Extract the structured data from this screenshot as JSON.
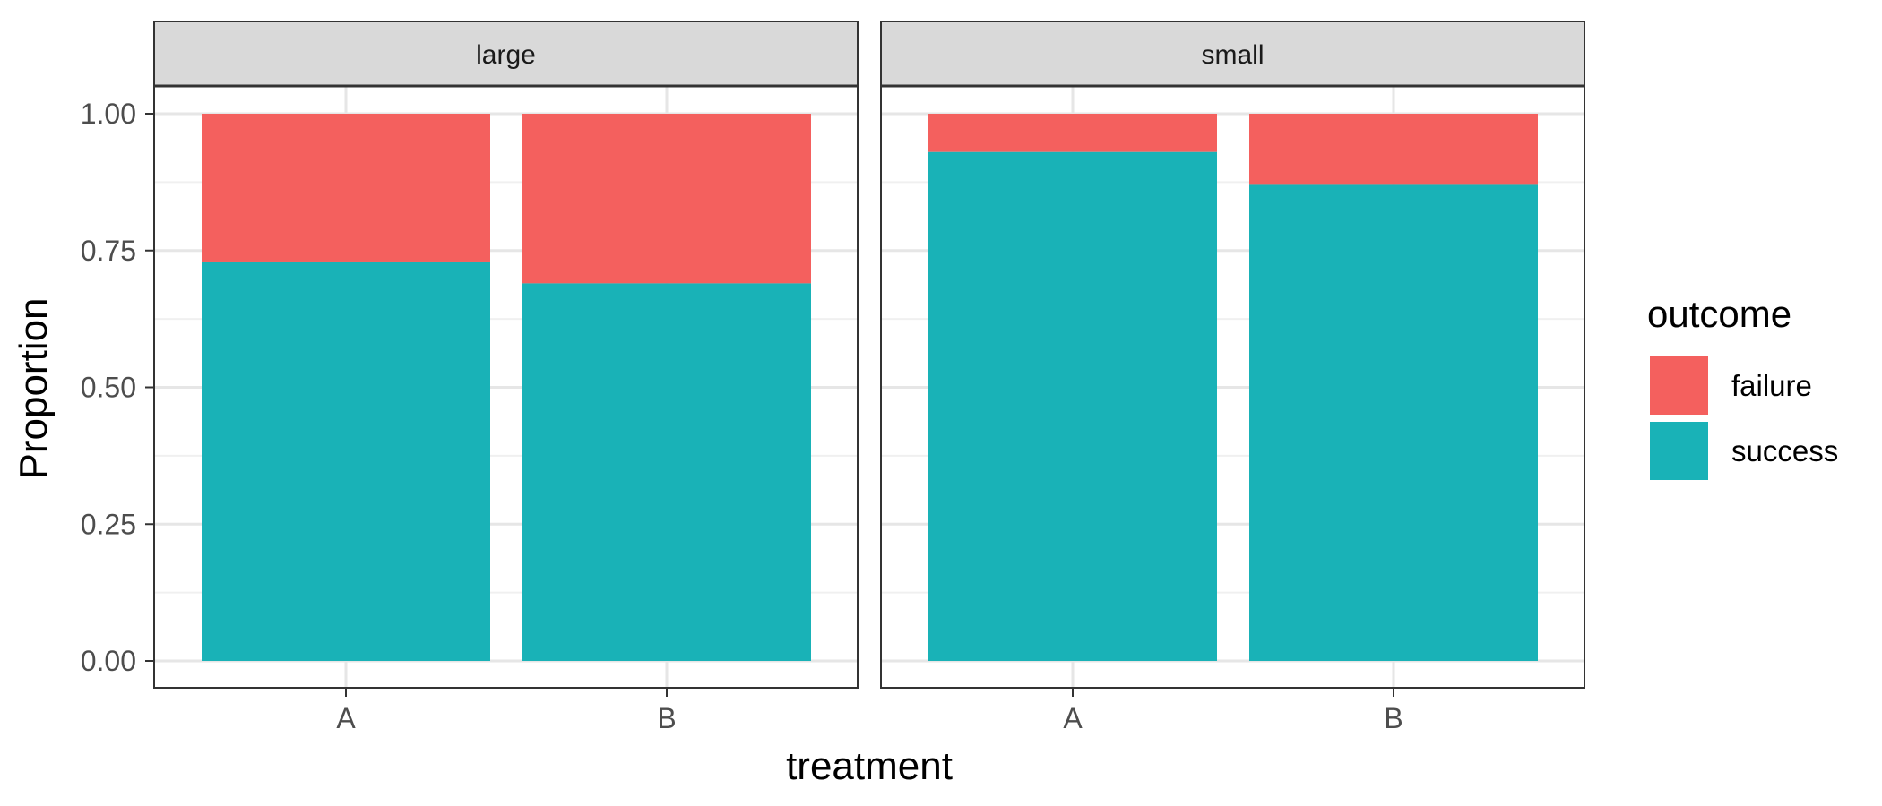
{
  "chart_data": {
    "type": "bar",
    "stacked": true,
    "facet_variable": "size",
    "panels": [
      {
        "label": "large",
        "categories": [
          "A",
          "B"
        ],
        "series": [
          {
            "name": "success",
            "values": [
              0.73,
              0.69
            ]
          },
          {
            "name": "failure",
            "values": [
              0.27,
              0.31
            ]
          }
        ]
      },
      {
        "label": "small",
        "categories": [
          "A",
          "B"
        ],
        "series": [
          {
            "name": "success",
            "values": [
              0.93,
              0.87
            ]
          },
          {
            "name": "failure",
            "values": [
              0.07,
              0.13
            ]
          }
        ]
      }
    ],
    "xlabel": "treatment",
    "ylabel": "Proportion",
    "ylim": [
      0,
      1
    ],
    "yticks": [
      0,
      0.25,
      0.5,
      0.75,
      1
    ],
    "ytick_labels": [
      "0.00",
      "0.25",
      "0.50",
      "0.75",
      "1.00"
    ],
    "legend": {
      "title": "outcome",
      "position": "right",
      "entries": [
        {
          "name": "failure",
          "color": "#F8766D"
        },
        {
          "name": "success",
          "color": "#00BFC4"
        }
      ]
    },
    "colors": {
      "failure": "#F4605E",
      "success": "#19B2B7"
    }
  }
}
